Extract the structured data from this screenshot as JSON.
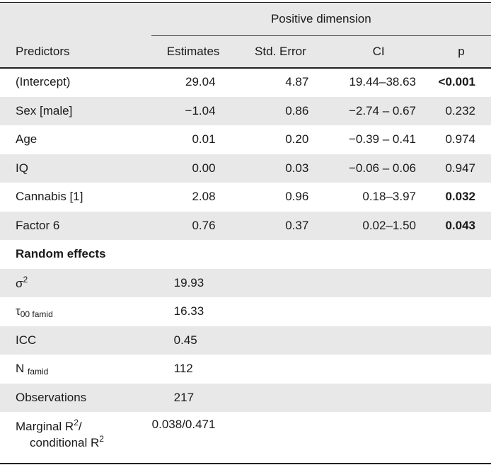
{
  "header": {
    "group_label": "Positive dimension",
    "columns": [
      "Predictors",
      "Estimates",
      "Std. Error",
      "CI",
      "p"
    ]
  },
  "fixed_effects": [
    {
      "predictor": "(Intercept)",
      "estimate": "29.04",
      "se": "4.87",
      "ci": "19.44–38.63",
      "p": "<0.001",
      "p_bold": true
    },
    {
      "predictor": "Sex [male]",
      "estimate": "−1.04",
      "se": "0.86",
      "ci": "−2.74 – 0.67",
      "p": "0.232",
      "p_bold": false
    },
    {
      "predictor": "Age",
      "estimate": "0.01",
      "se": "0.20",
      "ci": "−0.39 – 0.41",
      "p": "0.974",
      "p_bold": false
    },
    {
      "predictor": "IQ",
      "estimate": "0.00",
      "se": "0.03",
      "ci": "−0.06 – 0.06",
      "p": "0.947",
      "p_bold": false
    },
    {
      "predictor": "Cannabis [1]",
      "estimate": "2.08",
      "se": "0.96",
      "ci": "0.18–3.97",
      "p": "0.032",
      "p_bold": true
    },
    {
      "predictor": "Factor 6",
      "estimate": "0.76",
      "se": "0.37",
      "ci": "0.02–1.50",
      "p": "0.043",
      "p_bold": true
    }
  ],
  "random_effects": {
    "section_label": "Random effects",
    "sigma2": {
      "symbol": "σ",
      "sup": "2",
      "value": "19.93"
    },
    "tau00": {
      "symbol": "τ",
      "sub": "00 famid",
      "value": "16.33"
    },
    "icc": {
      "label": "ICC",
      "value": "0.45"
    },
    "n": {
      "label": "N",
      "sub": "famid",
      "value": "112"
    },
    "observations": {
      "label": "Observations",
      "value": "217"
    },
    "r2": {
      "line1_text": "Marginal R",
      "line1_sup": "2",
      "line1_suffix": "/",
      "line2_text": "conditional R",
      "line2_sup": "2",
      "value": "0.038/0.471"
    }
  }
}
